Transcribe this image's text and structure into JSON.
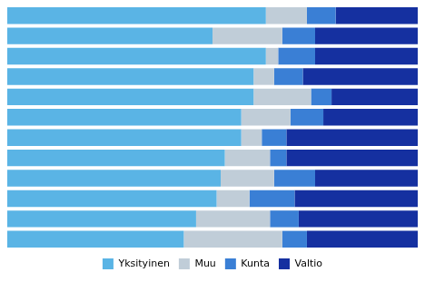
{
  "chart_data": {
    "type": "bar",
    "orientation": "horizontal",
    "stacked": true,
    "categories": [
      null,
      null,
      null,
      null,
      null,
      null,
      null,
      null,
      null,
      null,
      null,
      null
    ],
    "series": [
      {
        "name": "Yksityinen",
        "color": "#5ab4e5",
        "values": [
          63,
          50,
          63,
          60,
          60,
          57,
          57,
          53,
          52,
          51,
          46,
          43
        ]
      },
      {
        "name": "Muu",
        "color": "#c0cdd8",
        "values": [
          10,
          17,
          3,
          5,
          14,
          12,
          5,
          11,
          13,
          8,
          18,
          24
        ]
      },
      {
        "name": "Kunta",
        "color": "#3a7fd5",
        "values": [
          7,
          8,
          9,
          7,
          5,
          8,
          6,
          4,
          10,
          11,
          7,
          6
        ]
      },
      {
        "name": "Valtio",
        "color": "#1530a0",
        "values": [
          20,
          25,
          25,
          28,
          21,
          23,
          32,
          32,
          25,
          30,
          29,
          27
        ]
      }
    ],
    "xlim": [
      0,
      100
    ],
    "tick_labels": false,
    "grid": false,
    "legend": "bottom"
  }
}
